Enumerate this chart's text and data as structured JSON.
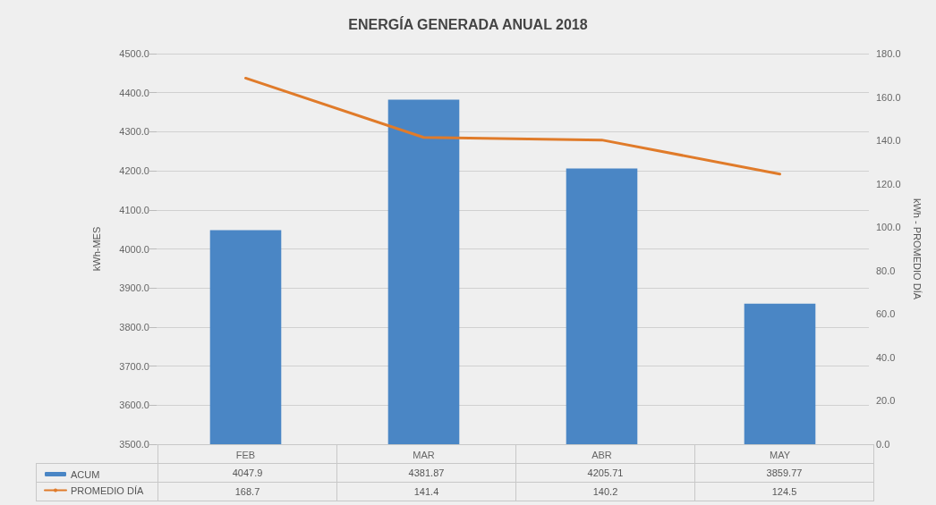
{
  "chart_data": {
    "type": "bar",
    "title": "ENERGÍA GENERADA ANUAL 2018",
    "ylabel": "kWh-MES",
    "y2label": "kWh - PROMEDIO DÍA",
    "categories": [
      "FEB",
      "MAR",
      "ABR",
      "MAY"
    ],
    "series": [
      {
        "name": "ACUM",
        "color": "#4a86c5",
        "values": [
          4047.9,
          4381.87,
          4205.71,
          3859.77
        ]
      },
      {
        "name": "PROMEDIO DÍA",
        "type": "line",
        "axis": "y2",
        "color": "#e07b2a",
        "values": [
          168.7,
          141.4,
          140.2,
          124.5
        ]
      }
    ],
    "ylim": [
      3500,
      4500
    ],
    "yticks": [
      {
        "value": 3500,
        "label": "3500.0"
      },
      {
        "value": 3600,
        "label": "3600.0"
      },
      {
        "value": 3700,
        "label": "3700.0"
      },
      {
        "value": 3800,
        "label": "3800.0"
      },
      {
        "value": 3900,
        "label": "3900.0"
      },
      {
        "value": 4000,
        "label": "4000.0"
      },
      {
        "value": 4100,
        "label": "4100.0"
      },
      {
        "value": 4200,
        "label": "4200.0"
      },
      {
        "value": 4300,
        "label": "4300.0"
      },
      {
        "value": 4400,
        "label": "4400.0"
      },
      {
        "value": 4500,
        "label": "4500.0"
      }
    ],
    "y2lim": [
      0,
      180
    ],
    "y2ticks": [
      {
        "value": 0,
        "label": "0.0"
      },
      {
        "value": 20,
        "label": "20.0"
      },
      {
        "value": 40,
        "label": "40.0"
      },
      {
        "value": 60,
        "label": "60.0"
      },
      {
        "value": 80,
        "label": "80.0"
      },
      {
        "value": 100,
        "label": "100.0"
      },
      {
        "value": 120,
        "label": "120.0"
      },
      {
        "value": 140,
        "label": "140.0"
      },
      {
        "value": 160,
        "label": "160.0"
      },
      {
        "value": 180,
        "label": "180.0"
      }
    ],
    "grid": "y",
    "legend": "bottom left",
    "marker": "none",
    "line_style": "solid",
    "data_labels": true
  }
}
